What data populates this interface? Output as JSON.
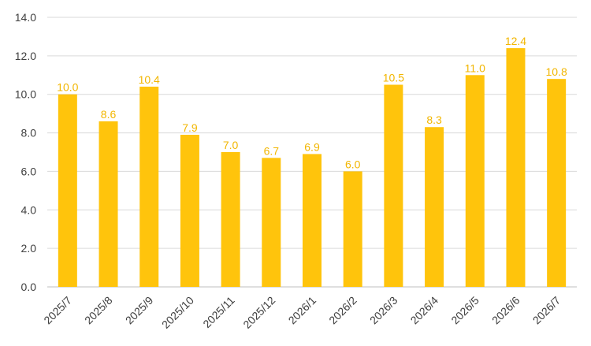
{
  "chart_data": {
    "type": "bar",
    "categories": [
      "2025/7",
      "2025/8",
      "2025/9",
      "2025/10",
      "2025/11",
      "2025/12",
      "2026/1",
      "2026/2",
      "2026/3",
      "2026/4",
      "2026/5",
      "2026/6",
      "2026/7"
    ],
    "values": [
      10.0,
      8.6,
      10.4,
      7.9,
      7.0,
      6.7,
      6.9,
      6.0,
      10.5,
      8.3,
      11.0,
      12.4,
      10.8
    ],
    "value_labels": [
      "10.0",
      "8.6",
      "10.4",
      "7.9",
      "7.0",
      "6.7",
      "6.9",
      "6.0",
      "10.5",
      "8.3",
      "11.0",
      "12.4",
      "10.8"
    ],
    "y_ticks": [
      "0.0",
      "2.0",
      "4.0",
      "6.0",
      "8.0",
      "10.0",
      "12.0",
      "14.0"
    ],
    "ylim": [
      0,
      14
    ],
    "grid": true,
    "legend": "none",
    "title": "",
    "xlabel": "",
    "ylabel": "",
    "colors": {
      "bar": "#FFC40C",
      "label": "#F2B600"
    }
  }
}
